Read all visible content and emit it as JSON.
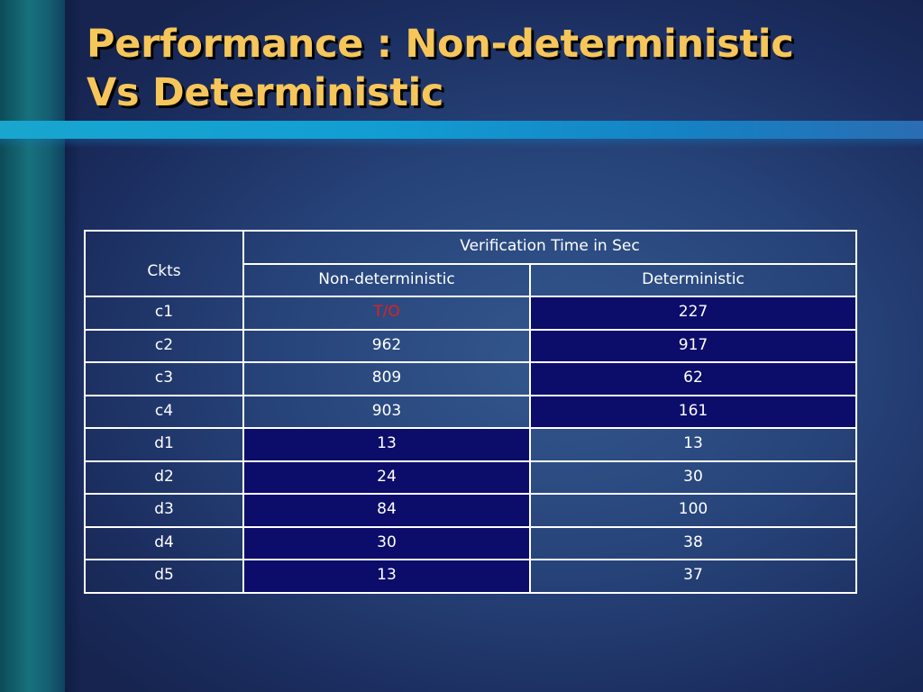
{
  "slide": {
    "title_line1": "Performance : Non-deterministic",
    "title_line2": "Vs Deterministic"
  },
  "table": {
    "row_header": "Ckts",
    "group_header": "Verification Time in Sec",
    "columns": [
      "Non-deterministic",
      "Deterministic"
    ],
    "rows": [
      {
        "ckt": "c1",
        "nondet": "T/O",
        "det": "227"
      },
      {
        "ckt": "c2",
        "nondet": "962",
        "det": "917"
      },
      {
        "ckt": "c3",
        "nondet": "809",
        "det": "62"
      },
      {
        "ckt": "c4",
        "nondet": "903",
        "det": "161"
      },
      {
        "ckt": "d1",
        "nondet": "13",
        "det": "13"
      },
      {
        "ckt": "d2",
        "nondet": "24",
        "det": "30"
      },
      {
        "ckt": "d3",
        "nondet": "84",
        "det": "100"
      },
      {
        "ckt": "d4",
        "nondet": "30",
        "det": "38"
      },
      {
        "ckt": "d5",
        "nondet": "13",
        "det": "37"
      }
    ]
  },
  "colors": {
    "title": "#f6c65a",
    "highlight_cell": "#0c0d6a",
    "timeout_text": "#e02020",
    "accent_rule": "#129ed3"
  }
}
